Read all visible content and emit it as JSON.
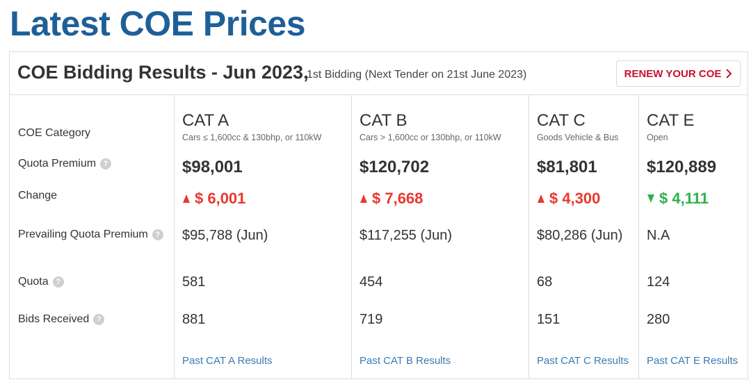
{
  "page": {
    "title": "Latest COE Prices"
  },
  "header": {
    "title": "COE Bidding Results - Jun 2023,",
    "subtitle": "1st Bidding (Next Tender on 21st June 2023)",
    "renew_label": "RENEW YOUR COE"
  },
  "rows": {
    "category": "COE Category",
    "quota_premium": "Quota Premium",
    "change": "Change",
    "prevailing": "Prevailing Quota Premium",
    "quota": "Quota",
    "bids": "Bids Received"
  },
  "categories": [
    {
      "name": "CAT A",
      "description": "Cars ≤ 1,600cc & 130bhp, or 110kW",
      "premium": "$98,001",
      "change": "$ 6,001",
      "direction": "up",
      "prevailing": "$95,788 (Jun)",
      "quota": "581",
      "bids": "881",
      "link": "Past CAT A Results"
    },
    {
      "name": "CAT B",
      "description": "Cars > 1,600cc or 130bhp, or 110kW",
      "premium": "$120,702",
      "change": "$ 7,668",
      "direction": "up",
      "prevailing": "$117,255 (Jun)",
      "quota": "454",
      "bids": "719",
      "link": "Past CAT B Results"
    },
    {
      "name": "CAT C",
      "description": "Goods Vehicle & Bus",
      "premium": "$81,801",
      "change": "$ 4,300",
      "direction": "up",
      "prevailing": "$80,286 (Jun)",
      "quota": "68",
      "bids": "151",
      "link": "Past CAT C Results"
    },
    {
      "name": "CAT E",
      "description": "Open",
      "premium": "$120,889",
      "change": "$ 4,111",
      "direction": "down",
      "prevailing": "N.A",
      "quota": "124",
      "bids": "280",
      "link": "Past CAT E Results"
    }
  ],
  "icons": {
    "help": "question-mark-circle-icon",
    "renew": "chevron-right-icon",
    "up": "triangle-up-icon",
    "down": "triangle-down-icon"
  },
  "colors": {
    "title": "#1f5f97",
    "up": "#e8382f",
    "down": "#2fb24a",
    "renew": "#c8102e",
    "link": "#3a7ab6"
  }
}
